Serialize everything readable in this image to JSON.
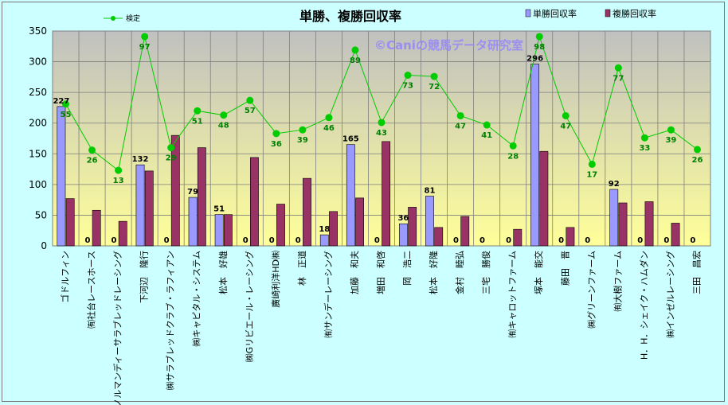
{
  "chart_data": {
    "type": "bar",
    "title": "単勝、複勝回収率",
    "watermark": "©Caniの競馬データ研究室",
    "ylim": [
      0,
      350
    ],
    "yticks": [
      0,
      50,
      100,
      150,
      200,
      250,
      300,
      350
    ],
    "grid": true,
    "legend_position": "top",
    "categories": [
      "ゴドルフィン",
      "㈲社台レースホース",
      "㈱ノルマンディーサラブレッドレーシング",
      "下河辺　隆行",
      "㈱サラブレッドクラブ・ラフィアン",
      "㈱キャピタル・システム",
      "松本　好雄",
      "㈱Gリビエール・レーシング",
      "廣崎利洋HD㈱",
      "林　正道",
      "㈲サンデーレーシング",
      "加藤　和夫",
      "増田　和啓",
      "岡　浩二",
      "松本　好隆",
      "金村　睦弘",
      "三宅　勝俊",
      "㈲キャロットファーム",
      "塚本　能交",
      "藤田　晋",
      "㈱グリーンファーム",
      "㈲大樹ファーム",
      "H．H．シェイク・ハムダン",
      "㈱インゼルレーシング",
      "三田　昌宏"
    ],
    "series": [
      {
        "name": "単勝回収率",
        "kind": "bar",
        "color": "#9999ff",
        "values": [
          227,
          0,
          0,
          132,
          0,
          79,
          51,
          0,
          0,
          0,
          18,
          165,
          0,
          36,
          81,
          0,
          0,
          0,
          296,
          0,
          0,
          92,
          0,
          0,
          0
        ]
      },
      {
        "name": "複勝回収率",
        "kind": "bar",
        "color": "#993366",
        "values": [
          77,
          58,
          40,
          122,
          180,
          160,
          51,
          144,
          68,
          110,
          56,
          78,
          170,
          63,
          30,
          48,
          0,
          27,
          154,
          30,
          0,
          70,
          72,
          37,
          0
        ]
      },
      {
        "name": "検定",
        "kind": "line",
        "color": "#00cc00",
        "values": [
          231,
          156,
          123,
          341,
          160,
          220,
          213,
          237,
          183,
          189,
          209,
          319,
          201,
          278,
          276,
          212,
          197,
          163,
          341,
          212,
          133,
          290,
          176,
          189,
          157
        ],
        "labels": [
          55,
          26,
          13,
          97,
          29,
          51,
          48,
          57,
          36,
          39,
          46,
          89,
          43,
          73,
          72,
          47,
          41,
          28,
          98,
          47,
          17,
          77,
          33,
          39,
          26
        ]
      }
    ]
  }
}
